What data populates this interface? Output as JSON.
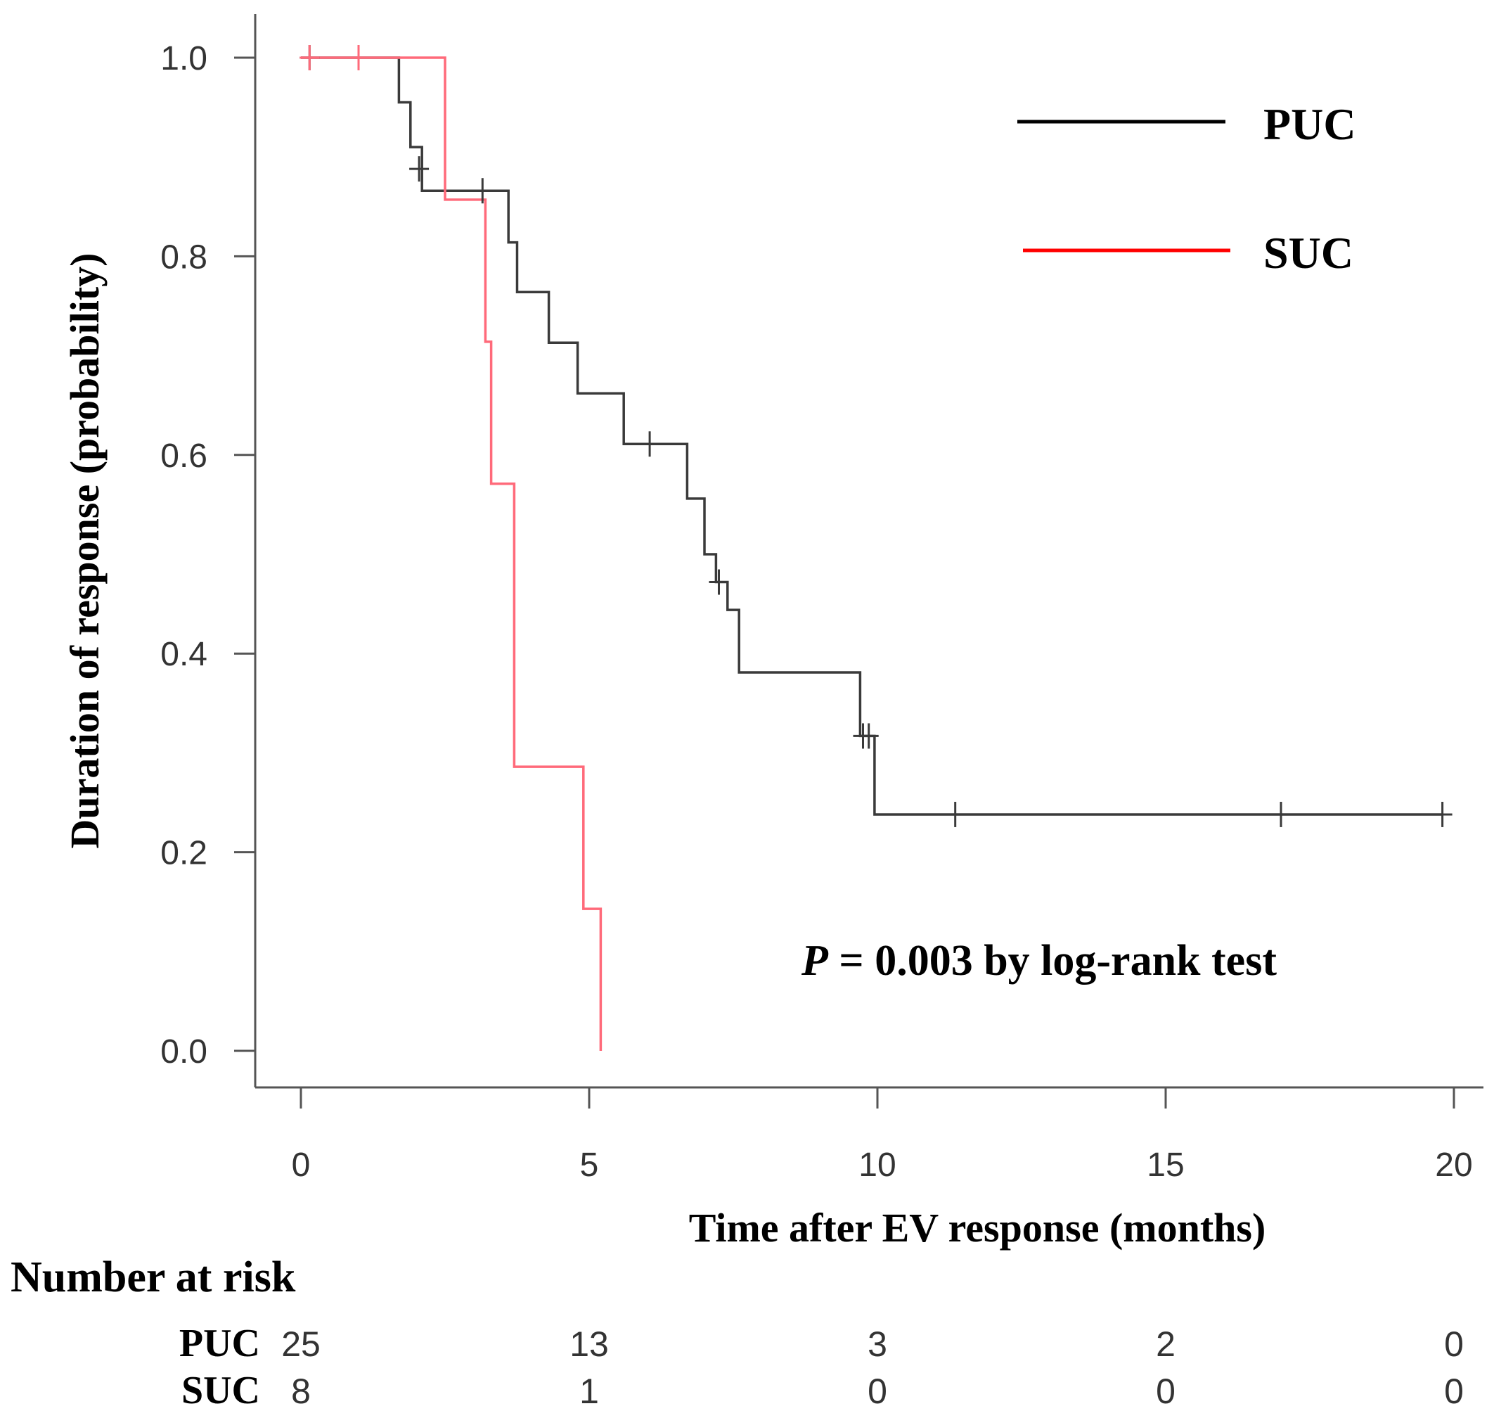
{
  "chart_data": {
    "type": "line",
    "subtype": "kaplan-meier",
    "title": "",
    "xlabel": "Time after EV response (months)",
    "ylabel": "Duration of response (probability)",
    "xlim": [
      0,
      20
    ],
    "ylim": [
      0,
      1
    ],
    "xticks": [
      0,
      5,
      10,
      15,
      20
    ],
    "xtick_labels": [
      "0",
      "5",
      "10",
      "15",
      "20"
    ],
    "yticks": [
      0,
      0.2,
      0.4,
      0.6,
      0.8,
      1.0
    ],
    "ytick_labels": [
      "0.0",
      "0.2",
      "0.4",
      "0.6",
      "0.8",
      "1.0"
    ],
    "grid": false,
    "legend_position": "top-right",
    "series": [
      {
        "name": "PUC",
        "color": "#000000",
        "steps": [
          [
            0,
            1.0
          ],
          [
            1.7,
            0.955
          ],
          [
            1.9,
            0.91
          ],
          [
            2.1,
            0.866
          ],
          [
            3.0,
            0.866
          ],
          [
            3.6,
            0.814
          ],
          [
            3.75,
            0.764
          ],
          [
            4.3,
            0.713
          ],
          [
            4.8,
            0.662
          ],
          [
            5.6,
            0.611
          ],
          [
            6.7,
            0.556
          ],
          [
            7.0,
            0.5
          ],
          [
            7.2,
            0.472
          ],
          [
            7.4,
            0.444
          ],
          [
            7.6,
            0.381
          ],
          [
            9.7,
            0.317
          ],
          [
            9.95,
            0.238
          ],
          [
            19.8,
            0.238
          ]
        ],
        "censored": [
          [
            0.15,
            1.0
          ],
          [
            2.05,
            0.888
          ],
          [
            3.15,
            0.866
          ],
          [
            6.05,
            0.611
          ],
          [
            7.25,
            0.472
          ],
          [
            9.75,
            0.317
          ],
          [
            9.85,
            0.317
          ],
          [
            11.35,
            0.238
          ],
          [
            17.0,
            0.238
          ],
          [
            19.8,
            0.238
          ]
        ]
      },
      {
        "name": "SUC",
        "color": "#ff0000",
        "steps": [
          [
            0,
            1.0
          ],
          [
            2.5,
            0.857
          ],
          [
            3.2,
            0.714
          ],
          [
            3.3,
            0.571
          ],
          [
            3.7,
            0.286
          ],
          [
            4.9,
            0.143
          ],
          [
            5.2,
            0.0
          ]
        ],
        "censored": [
          [
            0.15,
            1.0
          ],
          [
            1.0,
            1.0
          ]
        ]
      }
    ],
    "annotation": {
      "p_label": "P",
      "p_text": " = 0.003 by  log-rank test"
    },
    "risk_table": {
      "title": "Number at risk",
      "times": [
        0,
        5,
        10,
        15,
        20
      ],
      "rows": [
        {
          "name": "PUC",
          "values": [
            "25",
            "13",
            "3",
            "2",
            "0"
          ]
        },
        {
          "name": "SUC",
          "values": [
            "8",
            "1",
            "0",
            "0",
            "0"
          ]
        }
      ]
    }
  }
}
